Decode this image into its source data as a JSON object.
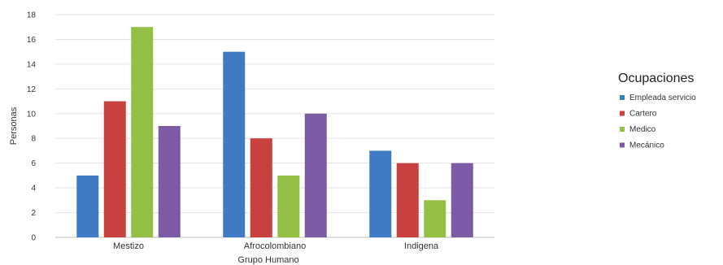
{
  "chart_data": {
    "type": "bar",
    "title": "",
    "xlabel": "Grupo Humano",
    "ylabel": "Personas",
    "ylim": [
      0,
      18
    ],
    "yticks": [
      0,
      2,
      4,
      6,
      8,
      10,
      12,
      14,
      16,
      18
    ],
    "grid": true,
    "legend": {
      "title": "Ocupaciones",
      "placement": "right"
    },
    "categories": [
      "Mestizo",
      "Afrocolombiano",
      "Indigena"
    ],
    "series": [
      {
        "name": "Empleada servicio",
        "color": "#3f7bc4",
        "values": [
          5,
          15,
          7
        ]
      },
      {
        "name": "Cartero",
        "color": "#c9413e",
        "values": [
          11,
          8,
          6
        ]
      },
      {
        "name": "Medico",
        "color": "#94bf45",
        "values": [
          17,
          5,
          3
        ]
      },
      {
        "name": "Mecánico",
        "color": "#7d5aa6",
        "values": [
          9,
          10,
          6
        ]
      }
    ]
  }
}
